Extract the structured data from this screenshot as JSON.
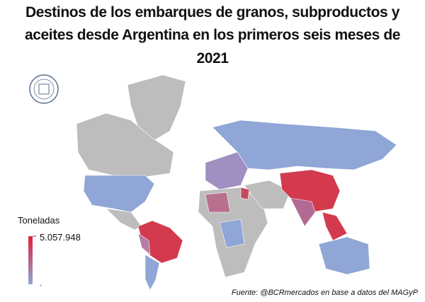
{
  "title_lines": [
    "Destinos de los embarques de granos, subproductos y",
    "aceites desde Argentina en los primeros seis meses de",
    "2021"
  ],
  "legend": {
    "title": "Toneladas",
    "max": {
      "value": 5057948,
      "label": "5.057.948"
    },
    "min": "-"
  },
  "source": "Fuente: @BCRmercados en base a datos del MAGyP"
}
